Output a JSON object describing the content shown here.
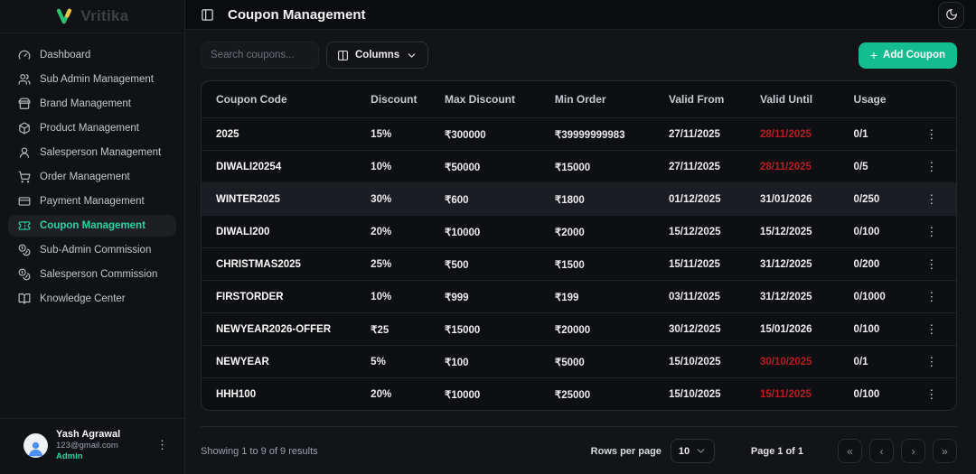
{
  "brand": {
    "name": "Vritika"
  },
  "header": {
    "title": "Coupon Management"
  },
  "toolbar": {
    "search_placeholder": "Search coupons...",
    "columns_label": "Columns",
    "add_coupon_plus": "+",
    "add_coupon_label": "Add Coupon"
  },
  "sidebar": {
    "items": [
      {
        "label": "Dashboard",
        "icon": "gauge-icon",
        "active": false
      },
      {
        "label": "Sub Admin Management",
        "icon": "users-icon",
        "active": false
      },
      {
        "label": "Brand Management",
        "icon": "store-icon",
        "active": false
      },
      {
        "label": "Product Management",
        "icon": "package-icon",
        "active": false
      },
      {
        "label": "Salesperson Management",
        "icon": "user-round-icon",
        "active": false
      },
      {
        "label": "Order Management",
        "icon": "shopping-cart-icon",
        "active": false
      },
      {
        "label": "Payment Management",
        "icon": "credit-card-icon",
        "active": false
      },
      {
        "label": "Coupon Management",
        "icon": "ticket-icon",
        "active": true
      },
      {
        "label": "Sub-Admin Commission",
        "icon": "coins-icon",
        "active": false
      },
      {
        "label": "Salesperson Commission",
        "icon": "coins-icon",
        "active": false
      },
      {
        "label": "Knowledge Center",
        "icon": "book-open-icon",
        "active": false
      }
    ],
    "user": {
      "name": "Yash Agrawal",
      "email": "123@gmail.com",
      "role": "Admin"
    }
  },
  "table": {
    "columns": [
      "Coupon Code",
      "Discount",
      "Max Discount",
      "Min Order",
      "Valid From",
      "Valid Until",
      "Usage",
      ""
    ],
    "rows": [
      {
        "code": "2025",
        "discount": "15%",
        "max_discount": "₹300000",
        "min_order": "₹39999999983",
        "valid_from": "27/11/2025",
        "valid_until": "28/11/2025",
        "valid_until_expired": true,
        "usage": "0/1",
        "highlighted": false
      },
      {
        "code": "DIWALI20254",
        "discount": "10%",
        "max_discount": "₹50000",
        "min_order": "₹15000",
        "valid_from": "27/11/2025",
        "valid_until": "28/11/2025",
        "valid_until_expired": true,
        "usage": "0/5",
        "highlighted": false
      },
      {
        "code": "WINTER2025",
        "discount": "30%",
        "max_discount": "₹600",
        "min_order": "₹1800",
        "valid_from": "01/12/2025",
        "valid_until": "31/01/2026",
        "valid_until_expired": false,
        "usage": "0/250",
        "highlighted": true
      },
      {
        "code": "DIWALI200",
        "discount": "20%",
        "max_discount": "₹10000",
        "min_order": "₹2000",
        "valid_from": "15/12/2025",
        "valid_until": "15/12/2025",
        "valid_until_expired": false,
        "usage": "0/100",
        "highlighted": false
      },
      {
        "code": "CHRISTMAS2025",
        "discount": "25%",
        "max_discount": "₹500",
        "min_order": "₹1500",
        "valid_from": "15/11/2025",
        "valid_until": "31/12/2025",
        "valid_until_expired": false,
        "usage": "0/200",
        "highlighted": false
      },
      {
        "code": "FIRSTORDER",
        "discount": "10%",
        "max_discount": "₹999",
        "min_order": "₹199",
        "valid_from": "03/11/2025",
        "valid_until": "31/12/2025",
        "valid_until_expired": false,
        "usage": "0/1000",
        "highlighted": false
      },
      {
        "code": "NEWYEAR2026-OFFER",
        "discount": "₹25",
        "max_discount": "₹15000",
        "min_order": "₹20000",
        "valid_from": "30/12/2025",
        "valid_until": "15/01/2026",
        "valid_until_expired": false,
        "usage": "0/100",
        "highlighted": false
      },
      {
        "code": "NEWYEAR",
        "discount": "5%",
        "max_discount": "₹100",
        "min_order": "₹5000",
        "valid_from": "15/10/2025",
        "valid_until": "30/10/2025",
        "valid_until_expired": true,
        "usage": "0/1",
        "highlighted": false
      },
      {
        "code": "HHH100",
        "discount": "20%",
        "max_discount": "₹10000",
        "min_order": "₹25000",
        "valid_from": "15/10/2025",
        "valid_until": "15/11/2025",
        "valid_until_expired": true,
        "usage": "0/100",
        "highlighted": false
      }
    ]
  },
  "footer": {
    "showing_text": "Showing 1 to 9 of 9 results",
    "rows_per_page_label": "Rows per page",
    "rows_per_page_value": "10",
    "page_info": "Page 1 of 1",
    "pagination": {
      "first": "«",
      "prev": "‹",
      "next": "›",
      "last": "»"
    }
  },
  "icons": {
    "row_menu": "⋮",
    "user_menu": "⋮"
  },
  "colors": {
    "accent": "#13bd90",
    "active_link": "#2bd3a5",
    "expired_date": "#b32024"
  }
}
